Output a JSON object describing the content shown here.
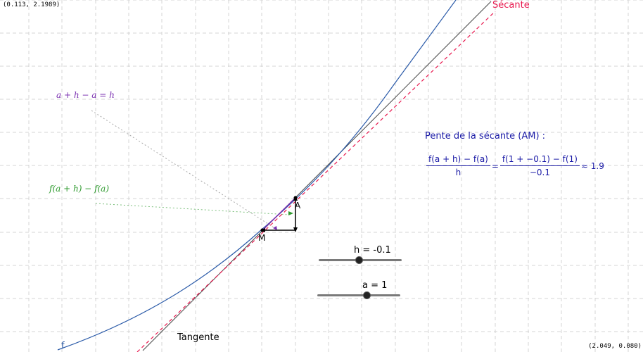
{
  "view": {
    "corner_top_left": "(0.113, 2.1989)",
    "corner_bottom_right": "(2.049, 0.080)"
  },
  "labels": {
    "secante": "Sécante",
    "tangente": "Tangente",
    "curve_name": "f",
    "point_a": "A",
    "point_m": "M",
    "h_annotation": "a + h − a = h",
    "f_annotation": "f(a + h) − f(a)"
  },
  "slope_panel": {
    "title": "Pente de la sécante (AM) :",
    "frac1_num": "f(a + h) − f(a)",
    "frac1_den": "h",
    "equals": "=",
    "frac2_num": "f(1 + −0.1) − f(1)",
    "frac2_den": "−0.1",
    "approx": "≈ 1.9"
  },
  "sliders": {
    "h": {
      "label": "h = -0.1",
      "fraction": 0.48
    },
    "a": {
      "label": "a = 1",
      "fraction": 0.59
    }
  },
  "colors": {
    "curve": "#2a5aa8",
    "secant": "#e8184e",
    "tangent": "#000000",
    "slope_text": "#1a1aa6",
    "h_annotation": "#7a2fb0",
    "f_annotation": "#2e9a2e",
    "grid": "#d4d4d4"
  }
}
